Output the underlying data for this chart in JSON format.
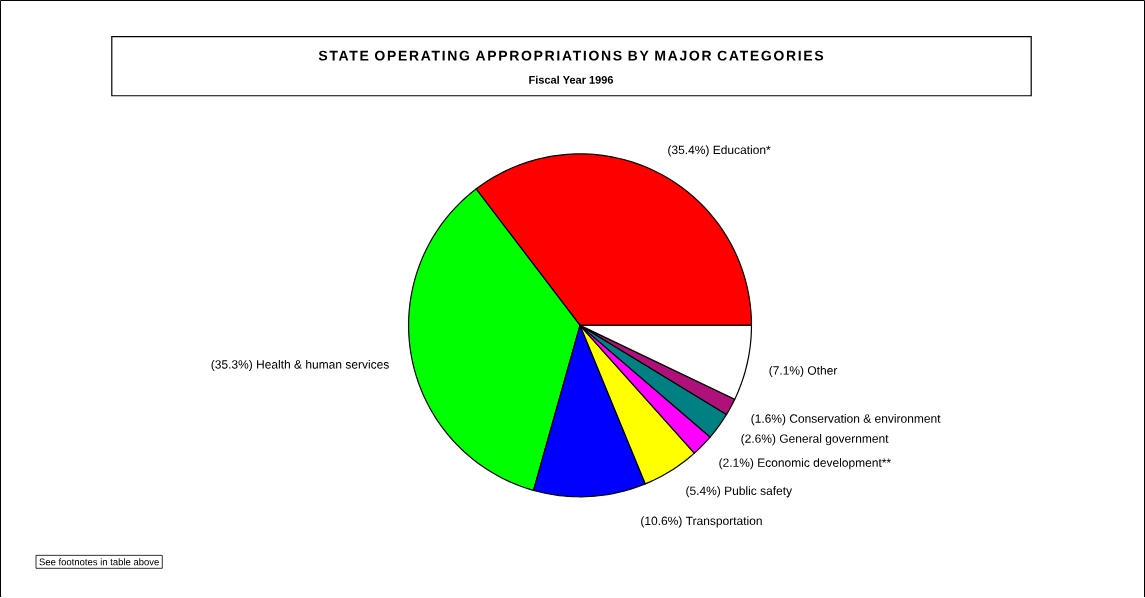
{
  "chart_data": {
    "type": "pie",
    "title": "STATE OPERATING APPROPRIATIONS BY MAJOR CATEGORIES",
    "subtitle": "Fiscal Year 1996",
    "categories": [
      "(35.4%) Education*",
      "(35.3%) Health & human services",
      "(10.6%) Transportation",
      "(5.4%) Public safety",
      "(2.1%) Economic development**",
      "(2.6%) General government",
      "(1.6%) Conservation & environment",
      "(7.1%) Other"
    ],
    "values": [
      35.4,
      35.3,
      10.6,
      5.4,
      2.1,
      2.6,
      1.6,
      7.1
    ],
    "colors": [
      "#ff0000",
      "#00ff00",
      "#0000ff",
      "#ffff00",
      "#ff00ff",
      "#008080",
      "#b0107a",
      "#ffffff"
    ],
    "annotations": [
      "See footnotes in table above"
    ]
  }
}
